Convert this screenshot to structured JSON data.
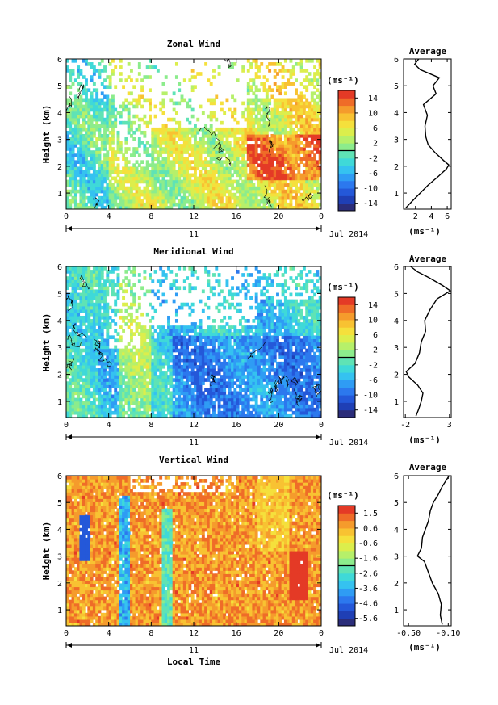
{
  "chart_data": [
    {
      "type": "heatmap",
      "title": "Zonal Wind",
      "ylabel": "Height (km)",
      "y_ticks": [
        "1",
        "2",
        "3",
        "4",
        "5",
        "6"
      ],
      "ylim": [
        0.4,
        6.0
      ],
      "x_ticks": [
        "0",
        "4",
        "8",
        "12",
        "16",
        "20",
        "0"
      ],
      "xlim": [
        0,
        24
      ],
      "date_label": "11",
      "month_label": "Jul 2014",
      "colorbar": {
        "unit": "(ms⁻¹)",
        "ticks": [
          "14",
          "10",
          "6",
          "2",
          "-2",
          "-6",
          "-10",
          "-14"
        ],
        "range": [
          -16,
          16
        ]
      },
      "contour": "zero-wind contour lines",
      "average_profile": {
        "title": "Average",
        "xlabel": "(ms⁻¹)",
        "x_ticks": [
          "2",
          "4",
          "6"
        ],
        "xlim": [
          0.5,
          6.5
        ],
        "y_ticks": [
          "1",
          "2",
          "3",
          "4",
          "5",
          "6"
        ],
        "height_km": [
          0.45,
          0.7,
          1.0,
          1.3,
          1.6,
          1.9,
          2.05,
          2.2,
          2.5,
          2.8,
          3.1,
          3.5,
          3.9,
          4.3,
          4.7,
          5.0,
          5.3,
          5.6,
          5.8,
          6.0
        ],
        "value": [
          0.8,
          1.6,
          2.6,
          3.6,
          4.8,
          5.9,
          6.2,
          5.6,
          4.5,
          3.6,
          3.3,
          3.2,
          3.5,
          3.0,
          4.6,
          4.2,
          5.0,
          2.6,
          1.9,
          2.4
        ]
      }
    },
    {
      "type": "heatmap",
      "title": "Meridional Wind",
      "ylabel": "Height (km)",
      "y_ticks": [
        "1",
        "2",
        "3",
        "4",
        "5",
        "6"
      ],
      "ylim": [
        0.4,
        6.0
      ],
      "x_ticks": [
        "0",
        "4",
        "8",
        "12",
        "16",
        "20",
        "0"
      ],
      "xlim": [
        0,
        24
      ],
      "date_label": "11",
      "month_label": "Jul 2014",
      "colorbar": {
        "unit": "(ms⁻¹)",
        "ticks": [
          "14",
          "10",
          "6",
          "2",
          "-2",
          "-6",
          "-10",
          "-14"
        ],
        "range": [
          -16,
          16
        ]
      },
      "contour": "zero-wind contour lines",
      "average_profile": {
        "title": "Average",
        "xlabel": "(ms⁻¹)",
        "x_ticks": [
          "-2",
          "3"
        ],
        "xlim": [
          -2.2,
          3.2
        ],
        "y_ticks": [
          "1",
          "2",
          "3",
          "4",
          "5",
          "6"
        ],
        "height_km": [
          0.45,
          0.7,
          1.0,
          1.3,
          1.6,
          1.9,
          2.1,
          2.4,
          2.8,
          3.2,
          3.6,
          4.0,
          4.4,
          4.8,
          5.1,
          5.3,
          5.6,
          5.8,
          6.0
        ],
        "value": [
          -0.8,
          -0.5,
          -0.2,
          0.0,
          -0.6,
          -1.6,
          -1.9,
          -0.9,
          -0.4,
          -0.2,
          0.3,
          0.2,
          0.8,
          1.6,
          3.1,
          2.2,
          0.6,
          -0.6,
          -1.4
        ]
      }
    },
    {
      "type": "heatmap",
      "title": "Vertical Wind",
      "ylabel": "Height (km)",
      "xlabel": "Local Time",
      "y_ticks": [
        "1",
        "2",
        "3",
        "4",
        "5",
        "6"
      ],
      "ylim": [
        0.4,
        6.0
      ],
      "x_ticks": [
        "0",
        "4",
        "8",
        "12",
        "16",
        "20",
        "0"
      ],
      "xlim": [
        0,
        24
      ],
      "date_label": "11",
      "month_label": "Jul 2014",
      "colorbar": {
        "unit": "(ms⁻¹)",
        "ticks": [
          "1.5",
          "0.6",
          "-0.6",
          "-1.6",
          "-2.6",
          "-3.6",
          "-4.6",
          "-5.6"
        ],
        "range": [
          -6.2,
          2.0
        ]
      },
      "average_profile": {
        "title": "Average",
        "xlabel": "(ms⁻¹)",
        "x_ticks": [
          "-0.50",
          "-0.10"
        ],
        "xlim": [
          -0.55,
          -0.07
        ],
        "y_ticks": [
          "1",
          "2",
          "3",
          "4",
          "5",
          "6"
        ],
        "height_km": [
          0.45,
          0.8,
          1.2,
          1.6,
          2.0,
          2.4,
          2.8,
          3.0,
          3.3,
          3.7,
          4.0,
          4.3,
          4.7,
          5.0,
          5.3,
          5.6,
          6.0
        ],
        "value": [
          -0.16,
          -0.18,
          -0.17,
          -0.2,
          -0.26,
          -0.3,
          -0.34,
          -0.41,
          -0.37,
          -0.36,
          -0.33,
          -0.3,
          -0.28,
          -0.25,
          -0.2,
          -0.16,
          -0.09
        ]
      }
    }
  ]
}
